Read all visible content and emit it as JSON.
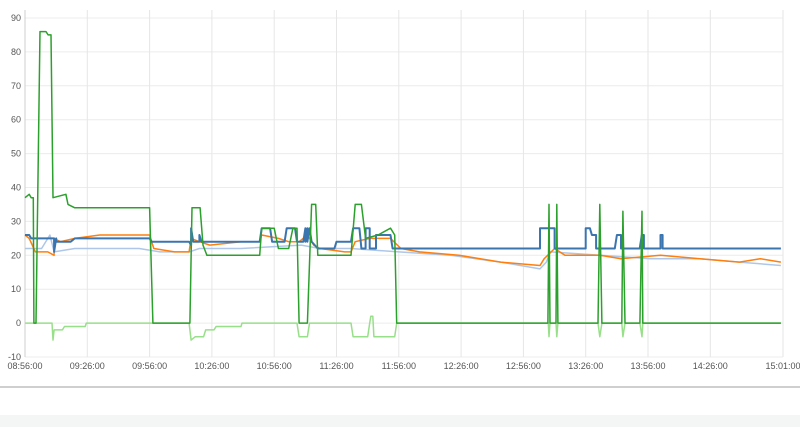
{
  "chart_data": {
    "type": "line",
    "title": "",
    "xlabel": "",
    "ylabel": "",
    "x_unit": "minutes since 08:56:00",
    "xlim": [
      0,
      365
    ],
    "ylim": [
      -10,
      90
    ],
    "grid": true,
    "legend": "none",
    "y_ticks": [
      -10,
      0,
      10,
      20,
      30,
      40,
      50,
      60,
      70,
      80,
      90
    ],
    "x_ticks": [
      {
        "x": 0,
        "label": "08:56:00"
      },
      {
        "x": 30,
        "label": "09:26:00"
      },
      {
        "x": 60,
        "label": "09:56:00"
      },
      {
        "x": 90,
        "label": "10:26:00"
      },
      {
        "x": 120,
        "label": "10:56:00"
      },
      {
        "x": 150,
        "label": "11:26:00"
      },
      {
        "x": 180,
        "label": "11:56:00"
      },
      {
        "x": 210,
        "label": "12:26:00"
      },
      {
        "x": 240,
        "label": "12:56:00"
      },
      {
        "x": 270,
        "label": "13:26:00"
      },
      {
        "x": 300,
        "label": "13:56:00"
      },
      {
        "x": 330,
        "label": "14:26:00"
      },
      {
        "x": 365,
        "label": "15:01:00"
      }
    ],
    "series": [
      {
        "name": "light-blue",
        "color": "#aec7e8",
        "width": 1.5,
        "points": [
          [
            0,
            22
          ],
          [
            5,
            22
          ],
          [
            8,
            22
          ],
          [
            12,
            26
          ],
          [
            14,
            21
          ],
          [
            24,
            22
          ],
          [
            36,
            22
          ],
          [
            55,
            22
          ],
          [
            65,
            21
          ],
          [
            79,
            21
          ],
          [
            84,
            22
          ],
          [
            104,
            22
          ],
          [
            133,
            23
          ],
          [
            142,
            22
          ],
          [
            157,
            22
          ],
          [
            180,
            21
          ],
          [
            205,
            20
          ],
          [
            229,
            18
          ],
          [
            248,
            16
          ],
          [
            251,
            18
          ],
          [
            253,
            21
          ],
          [
            277,
            20
          ],
          [
            301,
            19
          ],
          [
            325,
            19
          ],
          [
            344,
            18
          ],
          [
            364,
            17
          ]
        ]
      },
      {
        "name": "orange",
        "color": "#ff7f0e",
        "width": 1.5,
        "points": [
          [
            0,
            26
          ],
          [
            2,
            25
          ],
          [
            5,
            21
          ],
          [
            11,
            21
          ],
          [
            14,
            20
          ],
          [
            14,
            25
          ],
          [
            17,
            24
          ],
          [
            24,
            25
          ],
          [
            36,
            26
          ],
          [
            60,
            26
          ],
          [
            62,
            22
          ],
          [
            72,
            21
          ],
          [
            79,
            21
          ],
          [
            80,
            25
          ],
          [
            84,
            24
          ],
          [
            89,
            23
          ],
          [
            104,
            24
          ],
          [
            113,
            24
          ],
          [
            114,
            26
          ],
          [
            122,
            25
          ],
          [
            127,
            24
          ],
          [
            132,
            24
          ],
          [
            136,
            26
          ],
          [
            139,
            23
          ],
          [
            142,
            22
          ],
          [
            154,
            21
          ],
          [
            157,
            21
          ],
          [
            159,
            24
          ],
          [
            166,
            25
          ],
          [
            176,
            25
          ],
          [
            181,
            22
          ],
          [
            190,
            21
          ],
          [
            209,
            20
          ],
          [
            229,
            18
          ],
          [
            248,
            17
          ],
          [
            250,
            19
          ],
          [
            255,
            22
          ],
          [
            260,
            20
          ],
          [
            277,
            20
          ],
          [
            287,
            19
          ],
          [
            306,
            20
          ],
          [
            325,
            19
          ],
          [
            344,
            18
          ],
          [
            354,
            19
          ],
          [
            364,
            18
          ]
        ]
      },
      {
        "name": "blue",
        "color": "#3a75b0",
        "width": 2,
        "points": [
          [
            0,
            26
          ],
          [
            2,
            26
          ],
          [
            3,
            25
          ],
          [
            14,
            25
          ],
          [
            14,
            21
          ],
          [
            15,
            25
          ],
          [
            15,
            24
          ],
          [
            22,
            24
          ],
          [
            24,
            25
          ],
          [
            60,
            25
          ],
          [
            61,
            24
          ],
          [
            79,
            24
          ],
          [
            80,
            23
          ],
          [
            80,
            28
          ],
          [
            81,
            24
          ],
          [
            84,
            24
          ],
          [
            84,
            26
          ],
          [
            85,
            24
          ],
          [
            113,
            24
          ],
          [
            114,
            28
          ],
          [
            118,
            28
          ],
          [
            119,
            24
          ],
          [
            125,
            24
          ],
          [
            126,
            28
          ],
          [
            130,
            28
          ],
          [
            131,
            24
          ],
          [
            134,
            24
          ],
          [
            135,
            28
          ],
          [
            135,
            24
          ],
          [
            136,
            28
          ],
          [
            136,
            24
          ],
          [
            137,
            28
          ],
          [
            138,
            24
          ],
          [
            141,
            22
          ],
          [
            149,
            22
          ],
          [
            150,
            24
          ],
          [
            157,
            24
          ],
          [
            158,
            28
          ],
          [
            161,
            28
          ],
          [
            162,
            22
          ],
          [
            164,
            22
          ],
          [
            164,
            28
          ],
          [
            166,
            28
          ],
          [
            166,
            22
          ],
          [
            169,
            22
          ],
          [
            169,
            26
          ],
          [
            176,
            26
          ],
          [
            177,
            22
          ],
          [
            248,
            22
          ],
          [
            248,
            28
          ],
          [
            255,
            28
          ],
          [
            255,
            22
          ],
          [
            270,
            22
          ],
          [
            270,
            28
          ],
          [
            272,
            28
          ],
          [
            273,
            26
          ],
          [
            275,
            26
          ],
          [
            275,
            22
          ],
          [
            284,
            22
          ],
          [
            285,
            26
          ],
          [
            287,
            26
          ],
          [
            287,
            22
          ],
          [
            296,
            22
          ],
          [
            297,
            26
          ],
          [
            298,
            26
          ],
          [
            298,
            22
          ],
          [
            306,
            22
          ],
          [
            306,
            26
          ],
          [
            307,
            26
          ],
          [
            307,
            22
          ],
          [
            364,
            22
          ]
        ]
      },
      {
        "name": "light-green",
        "color": "#98df8a",
        "width": 1.5,
        "points": [
          [
            0,
            0
          ],
          [
            13,
            0
          ],
          [
            13.5,
            -5
          ],
          [
            14,
            -2
          ],
          [
            18,
            -2
          ],
          [
            19,
            -1
          ],
          [
            29,
            -1
          ],
          [
            29.5,
            0
          ],
          [
            79,
            0
          ],
          [
            80,
            -5
          ],
          [
            82,
            -4
          ],
          [
            86,
            -4
          ],
          [
            87,
            -2
          ],
          [
            91,
            -2
          ],
          [
            92,
            -1
          ],
          [
            104,
            -1
          ],
          [
            104.5,
            0
          ],
          [
            131,
            0
          ],
          [
            132,
            -4
          ],
          [
            136,
            -4
          ],
          [
            137,
            0
          ],
          [
            157,
            0
          ],
          [
            158,
            -4
          ],
          [
            165,
            -4
          ],
          [
            166,
            0
          ],
          [
            166.5,
            2
          ],
          [
            167.5,
            2
          ],
          [
            168,
            -4
          ],
          [
            178,
            -4
          ],
          [
            179,
            0
          ],
          [
            252,
            0
          ],
          [
            252.3,
            -4
          ],
          [
            252.8,
            0
          ],
          [
            255.7,
            0
          ],
          [
            256.1,
            -4
          ],
          [
            256.6,
            0
          ],
          [
            275.9,
            0
          ],
          [
            276.8,
            -4
          ],
          [
            277.8,
            0
          ],
          [
            287.4,
            0
          ],
          [
            287.9,
            -4
          ],
          [
            288.9,
            0
          ],
          [
            296.1,
            0
          ],
          [
            297.1,
            -4
          ],
          [
            297.5,
            0
          ],
          [
            364,
            0
          ]
        ]
      },
      {
        "name": "dark-green",
        "color": "#2ca02c",
        "width": 1.5,
        "points": [
          [
            0,
            37
          ],
          [
            2,
            38
          ],
          [
            3,
            37
          ],
          [
            4,
            37
          ],
          [
            4.3,
            0
          ],
          [
            5.3,
            0
          ],
          [
            7.2,
            86
          ],
          [
            10.1,
            86
          ],
          [
            11.1,
            85
          ],
          [
            12.5,
            85
          ],
          [
            13.5,
            37
          ],
          [
            19.7,
            38
          ],
          [
            20.7,
            35
          ],
          [
            24,
            34
          ],
          [
            60,
            34
          ],
          [
            61.6,
            0
          ],
          [
            79.4,
            0
          ],
          [
            80.4,
            34
          ],
          [
            84.3,
            34
          ],
          [
            85.7,
            23
          ],
          [
            87.6,
            20
          ],
          [
            113,
            20
          ],
          [
            114,
            28
          ],
          [
            120,
            28
          ],
          [
            122,
            22
          ],
          [
            127,
            22
          ],
          [
            129,
            28
          ],
          [
            131,
            28
          ],
          [
            132,
            0
          ],
          [
            136,
            0
          ],
          [
            138,
            35
          ],
          [
            140,
            35
          ],
          [
            141,
            20
          ],
          [
            157,
            20
          ],
          [
            159,
            35
          ],
          [
            162,
            35
          ],
          [
            164,
            25
          ],
          [
            170,
            26
          ],
          [
            176,
            28
          ],
          [
            178,
            26
          ],
          [
            179,
            0
          ],
          [
            251.8,
            0
          ],
          [
            252.3,
            35
          ],
          [
            252.8,
            0
          ],
          [
            255.7,
            0
          ],
          [
            256.1,
            35
          ],
          [
            256.6,
            0
          ],
          [
            275.9,
            0
          ],
          [
            276.8,
            35
          ],
          [
            277.8,
            0
          ],
          [
            287.4,
            0
          ],
          [
            287.9,
            33
          ],
          [
            288.9,
            0
          ],
          [
            296.1,
            0
          ],
          [
            297.1,
            33
          ],
          [
            297.5,
            0
          ],
          [
            364,
            0
          ]
        ]
      }
    ]
  }
}
